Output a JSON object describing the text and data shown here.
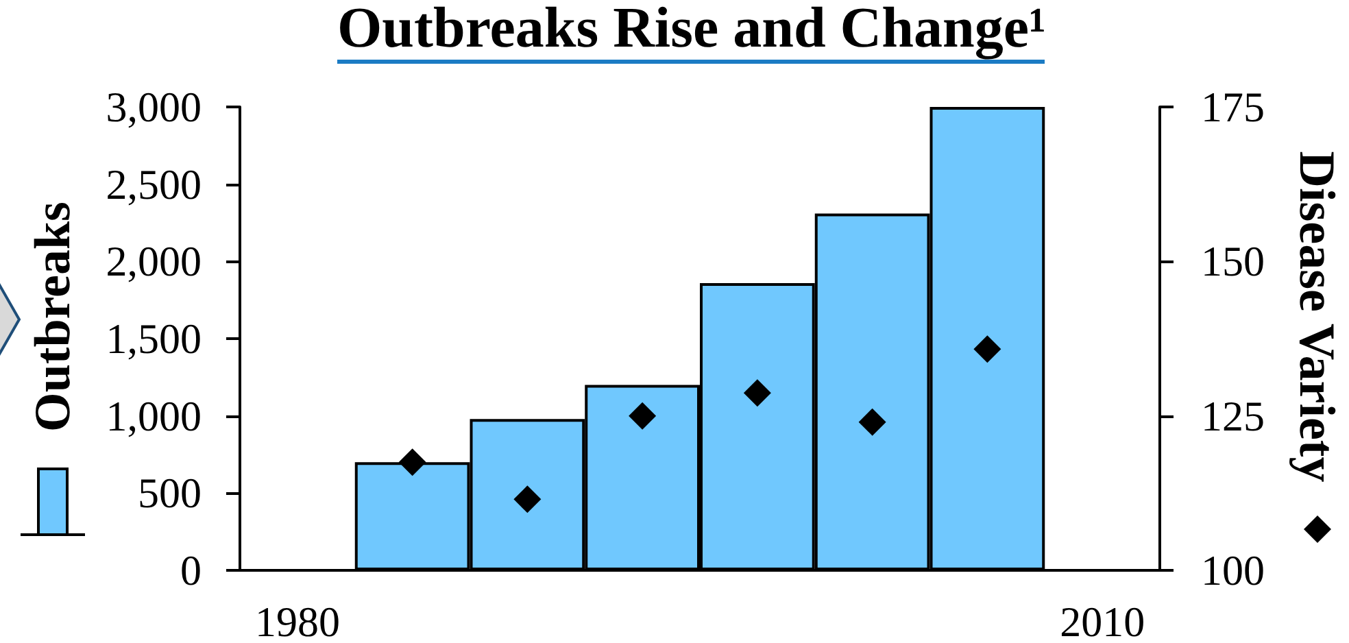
{
  "chart_data": {
    "type": "bar",
    "title": "Outbreaks Rise and Change¹",
    "ylabel": "Outbreaks",
    "y2label": "Disease Variety",
    "categories": [
      "1980",
      null,
      null,
      null,
      null,
      null,
      null,
      "2010"
    ],
    "series": [
      {
        "color": "#70c8fe",
        "values": [
          null,
          700,
          980,
          1200,
          1860,
          2310,
          3000,
          null
        ]
      },
      {
        "type": "scatter",
        "axis": "y2",
        "color": "#000000",
        "values": [
          null,
          117.5,
          111.5,
          125,
          128.7,
          124,
          135.8,
          null
        ]
      }
    ],
    "marker": "diamond",
    "ylim": [
      0,
      3000
    ],
    "yticks": [
      0,
      500,
      {
        "value": 1000,
        "label": "1,000"
      },
      {
        "value": 1500,
        "label": "1,500"
      },
      {
        "value": 2000,
        "label": "2,000"
      },
      {
        "value": 2500,
        "label": "2,500"
      },
      {
        "value": 3000,
        "label": "3,000"
      }
    ],
    "y2lim": [
      100,
      175
    ],
    "y2ticks": [
      100,
      125,
      150,
      175
    ]
  }
}
